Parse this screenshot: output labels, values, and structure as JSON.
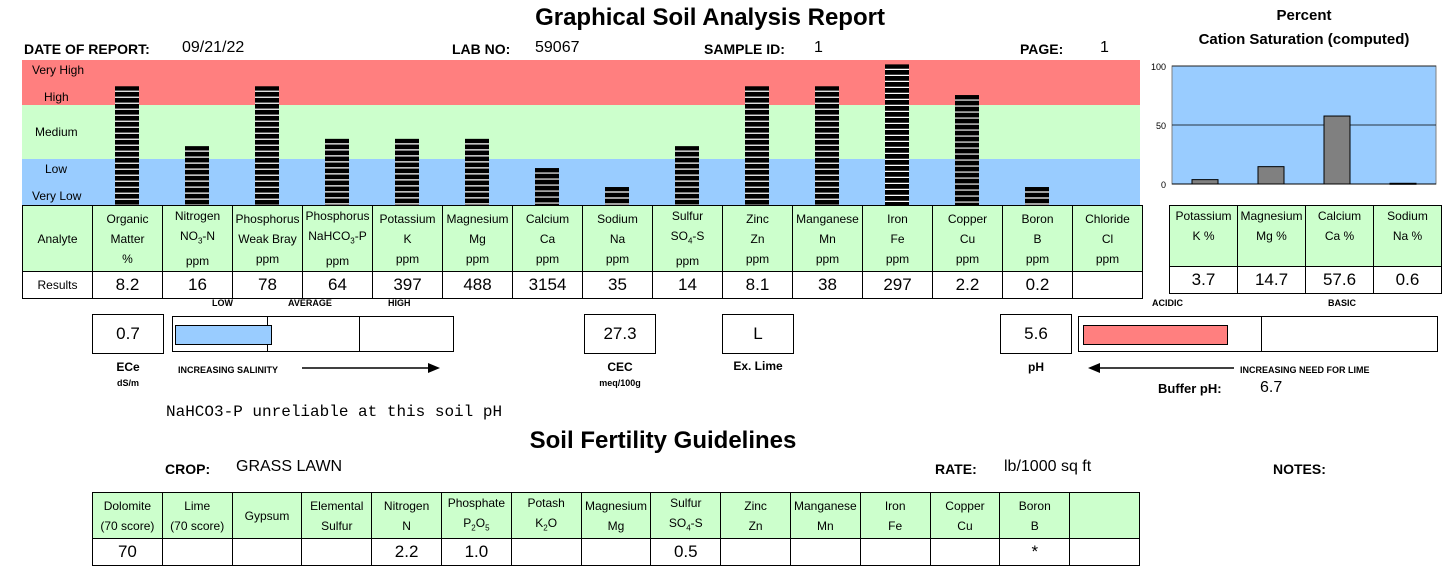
{
  "report": {
    "title": "Graphical Soil Analysis Report",
    "date_label": "DATE OF REPORT:",
    "date": "09/21/22",
    "lab_label": "LAB NO:",
    "lab_no": "59067",
    "sample_label": "SAMPLE ID:",
    "sample_id": "1",
    "page_label": "PAGE:",
    "page": "1"
  },
  "cation_title_1": "Percent",
  "cation_title_2": "Cation Saturation (computed)",
  "levels": [
    "Very High",
    "High",
    "Medium",
    "Low",
    "Very Low"
  ],
  "colors": {
    "red": "#ff7f7f",
    "green": "#ccffcc",
    "blue": "#99ccff",
    "gray": "#808080",
    "bar": "#000000"
  },
  "analyte_row_label": "Analyte",
  "results_row_label": "Results",
  "analytes": [
    {
      "l1": "Organic",
      "l2": "Matter",
      "l3": "%",
      "result": "8.2"
    },
    {
      "l1": "Nitrogen",
      "l2": "NO",
      "l2sub": "3",
      "l2post": "-N",
      "l3": "ppm",
      "result": "16"
    },
    {
      "l1": "Phosphorus",
      "l2": "Weak Bray",
      "l3": "ppm",
      "result": "78"
    },
    {
      "l1": "Phosphorus",
      "l2": "NaHCO",
      "l2sub": "3",
      "l2post": "-P",
      "l3": "ppm",
      "result": "64"
    },
    {
      "l1": "Potassium",
      "l2": "K",
      "l3": "ppm",
      "result": "397"
    },
    {
      "l1": "Magnesium",
      "l2": "Mg",
      "l3": "ppm",
      "result": "488"
    },
    {
      "l1": "Calcium",
      "l2": "Ca",
      "l3": "ppm",
      "result": "3154"
    },
    {
      "l1": "Sodium",
      "l2": "Na",
      "l3": "ppm",
      "result": "35"
    },
    {
      "l1": "Sulfur",
      "l2": "SO",
      "l2sub": "4",
      "l2post": "-S",
      "l3": "ppm",
      "result": "14"
    },
    {
      "l1": "Zinc",
      "l2": "Zn",
      "l3": "ppm",
      "result": "8.1"
    },
    {
      "l1": "Manganese",
      "l2": "Mn",
      "l3": "ppm",
      "result": "38"
    },
    {
      "l1": "Iron",
      "l2": "Fe",
      "l3": "ppm",
      "result": "297"
    },
    {
      "l1": "Copper",
      "l2": "Cu",
      "l3": "ppm",
      "result": "2.2"
    },
    {
      "l1": "Boron",
      "l2": "B",
      "l3": "ppm",
      "result": "0.2"
    },
    {
      "l1": "Chloride",
      "l2": "Cl",
      "l3": "ppm",
      "result": ""
    }
  ],
  "cations": [
    {
      "l1": "Potassium",
      "l2": "K %",
      "result": "3.7"
    },
    {
      "l1": "Magnesium",
      "l2": "Mg %",
      "result": "14.7"
    },
    {
      "l1": "Calcium",
      "l2": "Ca %",
      "result": "57.6"
    },
    {
      "l1": "Sodium",
      "l2": "Na %",
      "result": "0.6"
    }
  ],
  "chart_data": [
    {
      "type": "bar",
      "title": "",
      "categories": [
        "Organic Matter",
        "Nitrogen NO3-N",
        "Phosphorus Weak Bray",
        "Phosphorus NaHCO3-P",
        "Potassium K",
        "Magnesium Mg",
        "Calcium Ca",
        "Sodium Na",
        "Sulfur SO4-S",
        "Zinc Zn",
        "Manganese Mn",
        "Iron Fe",
        "Copper Cu",
        "Boron B",
        "Chloride Cl"
      ],
      "levels_bottom_to_top": [
        "Very Low",
        "Low",
        "Medium",
        "High",
        "Very High"
      ],
      "values": [
        0.82,
        0.41,
        0.82,
        0.46,
        0.46,
        0.46,
        0.26,
        0.13,
        0.41,
        0.82,
        0.82,
        0.97,
        0.76,
        0.13,
        null
      ],
      "value_unit": "fraction of rating scale height"
    },
    {
      "type": "bar",
      "title": "Percent Cation Saturation (computed)",
      "categories": [
        "K %",
        "Mg %",
        "Ca %",
        "Na %"
      ],
      "values": [
        3.7,
        14.7,
        57.6,
        0.6
      ],
      "ylim": [
        0,
        100
      ],
      "yticks": [
        "0",
        "50",
        "100"
      ],
      "grid": true
    }
  ],
  "salinity": {
    "value": "0.7",
    "label": "ECe",
    "unit": "dS/m",
    "scale_low": "LOW",
    "scale_avg": "AVERAGE",
    "scale_high": "HIGH",
    "arrow_label": "INCREASING SALINITY",
    "level_fraction": 0.34
  },
  "cec": {
    "value": "27.3",
    "label": "CEC",
    "unit": "meq/100g"
  },
  "lime": {
    "value": "L",
    "label": "Ex. Lime"
  },
  "ph": {
    "value": "5.6",
    "label": "pH",
    "acidic": "ACIDIC",
    "basic": "BASIC",
    "arrow_label": "INCREASING NEED FOR LIME",
    "buffer_label": "Buffer pH:",
    "buffer_value": "6.7",
    "level_fraction": 0.5
  },
  "note": "NaHCO3-P unreliable at this soil pH",
  "guidelines": {
    "title": "Soil Fertility Guidelines",
    "crop_label": "CROP:",
    "crop": "GRASS LAWN",
    "rate_label": "RATE:",
    "rate": "lb/1000 sq ft",
    "notes_label": "NOTES:",
    "columns": [
      {
        "l1": "Dolomite",
        "l2": "(70 score)",
        "result": "70"
      },
      {
        "l1": "Lime",
        "l2": "(70 score)",
        "result": ""
      },
      {
        "l1": "Gypsum",
        "l2": "",
        "result": ""
      },
      {
        "l1": "Elemental",
        "l2": "Sulfur",
        "result": ""
      },
      {
        "l1": "Nitrogen",
        "l2": "N",
        "result": "2.2"
      },
      {
        "l1": "Phosphate",
        "l2": "P",
        "l2sub": "2",
        "l2mid": "O",
        "l2sub2": "5",
        "result": "1.0"
      },
      {
        "l1": "Potash",
        "l2": "K",
        "l2sub": "2",
        "l2mid": "O",
        "result": ""
      },
      {
        "l1": "Magnesium",
        "l2": "Mg",
        "result": ""
      },
      {
        "l1": "Sulfur",
        "l2": "SO",
        "l2sub": "4",
        "l2mid": "-S",
        "result": "0.5"
      },
      {
        "l1": "Zinc",
        "l2": "Zn",
        "result": ""
      },
      {
        "l1": "Manganese",
        "l2": "Mn",
        "result": ""
      },
      {
        "l1": "Iron",
        "l2": "Fe",
        "result": ""
      },
      {
        "l1": "Copper",
        "l2": "Cu",
        "result": ""
      },
      {
        "l1": "Boron",
        "l2": "B",
        "result": "*"
      },
      {
        "l1": "",
        "l2": "",
        "result": ""
      }
    ]
  }
}
